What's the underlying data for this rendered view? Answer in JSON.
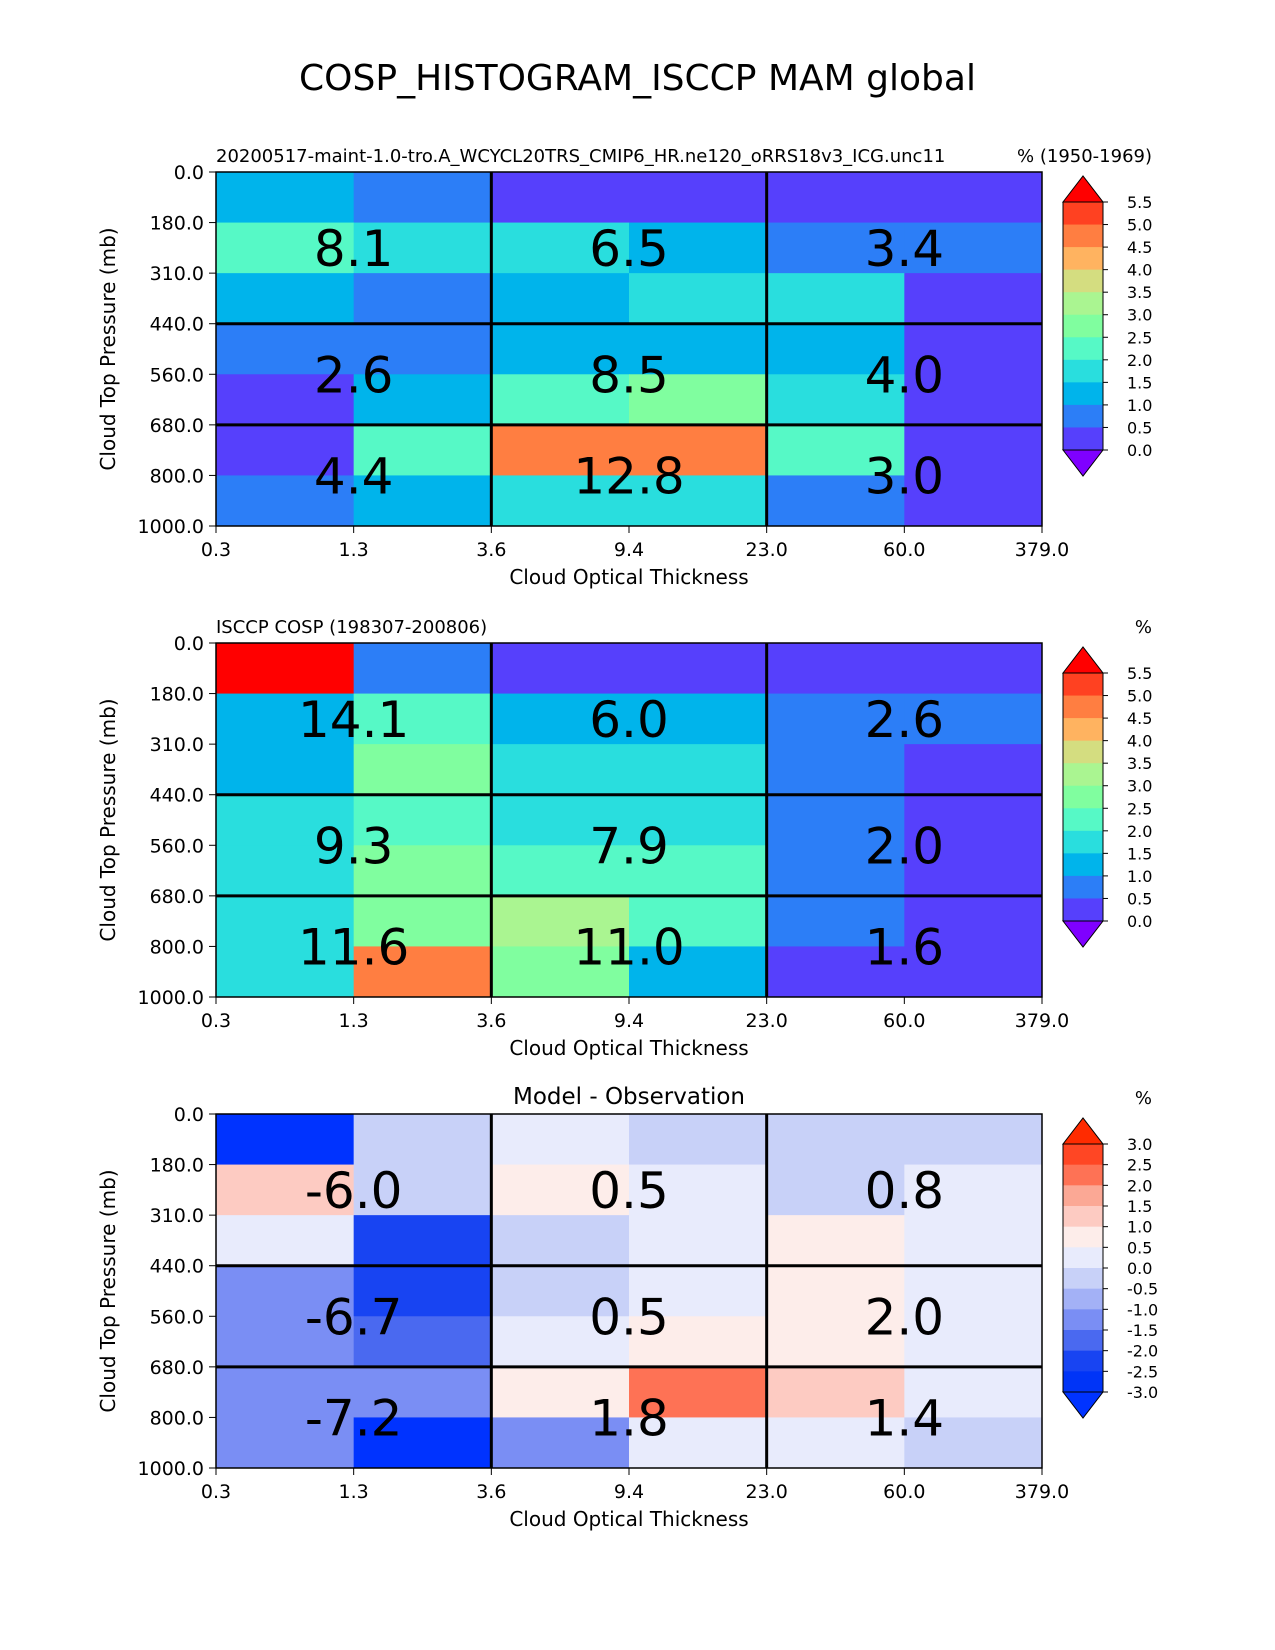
{
  "page_title": "COSP_HISTOGRAM_ISCCP MAM global",
  "chart_data": [
    {
      "type": "heatmap",
      "title_left": "20200517-maint-1.0-tro.A_WCYCL20TRS_CMIP6_HR.ne120_oRRS18v3_ICG.unc11",
      "title_center": "",
      "title_right": "% (1950-1969)",
      "xlabel": "Cloud Optical Thickness",
      "ylabel": "Cloud Top Pressure (mb)",
      "x_ticks": [
        "0.3",
        "1.3",
        "3.6",
        "9.4",
        "23.0",
        "60.0",
        "379.0"
      ],
      "y_ticks": [
        "0.0",
        "180.0",
        "310.0",
        "440.0",
        "560.0",
        "680.0",
        "800.0",
        "1000.0"
      ],
      "colorbar": {
        "labels": [
          "5.5",
          "5.0",
          "4.5",
          "4.0",
          "3.5",
          "3.0",
          "2.5",
          "2.0",
          "1.5",
          "1.0",
          "0.5",
          "0.0"
        ],
        "colors": [
          "#7f00ff",
          "#5640fc",
          "#2c7ef7",
          "#00b4eb",
          "#29dede",
          "#56f9c6",
          "#80fe9f",
          "#aaf591",
          "#d4dd80",
          "#ffb360",
          "#ff7e41",
          "#ff4121",
          "#ff0000"
        ]
      },
      "values": [
        [
          1.3,
          0.6,
          0.1,
          0.1,
          0.1,
          0.1
        ],
        [
          2.3,
          1.8,
          1.8,
          1.4,
          0.6,
          0.6
        ],
        [
          1.3,
          0.6,
          1.3,
          1.8,
          1.8,
          0.1
        ],
        [
          0.6,
          0.6,
          1.3,
          1.3,
          1.3,
          0.1
        ],
        [
          0.1,
          1.3,
          2.3,
          2.8,
          1.8,
          0.1
        ],
        [
          0.1,
          2.3,
          4.8,
          4.8,
          2.3,
          0.1
        ],
        [
          0.6,
          1.3,
          1.8,
          1.8,
          0.6,
          0.1
        ]
      ],
      "block_values": [
        [
          "8.1",
          "6.5",
          "3.4"
        ],
        [
          "2.6",
          "8.5",
          "4.0"
        ],
        [
          "4.4",
          "12.8",
          "3.0"
        ]
      ]
    },
    {
      "type": "heatmap",
      "title_left": "ISCCP COSP (198307-200806)",
      "title_center": "",
      "title_right": "%",
      "xlabel": "Cloud Optical Thickness",
      "ylabel": "Cloud Top Pressure (mb)",
      "x_ticks": [
        "0.3",
        "1.3",
        "3.6",
        "9.4",
        "23.0",
        "60.0",
        "379.0"
      ],
      "y_ticks": [
        "0.0",
        "180.0",
        "310.0",
        "440.0",
        "560.0",
        "680.0",
        "800.0",
        "1000.0"
      ],
      "colorbar": {
        "labels": [
          "5.5",
          "5.0",
          "4.5",
          "4.0",
          "3.5",
          "3.0",
          "2.5",
          "2.0",
          "1.5",
          "1.0",
          "0.5",
          "0.0"
        ],
        "colors": [
          "#7f00ff",
          "#5640fc",
          "#2c7ef7",
          "#00b4eb",
          "#29dede",
          "#56f9c6",
          "#80fe9f",
          "#aaf591",
          "#d4dd80",
          "#ffb360",
          "#ff7e41",
          "#ff4121",
          "#ff0000"
        ]
      },
      "values": [
        [
          5.8,
          0.6,
          0.1,
          0.1,
          0.1,
          0.1
        ],
        [
          1.3,
          2.3,
          1.3,
          1.3,
          0.6,
          0.6
        ],
        [
          1.3,
          2.8,
          1.8,
          1.8,
          0.6,
          0.1
        ],
        [
          1.8,
          2.3,
          1.8,
          1.8,
          0.6,
          0.1
        ],
        [
          1.8,
          2.8,
          2.3,
          2.3,
          0.6,
          0.1
        ],
        [
          1.8,
          2.8,
          3.3,
          2.3,
          0.6,
          0.1
        ],
        [
          1.8,
          4.8,
          2.8,
          1.3,
          0.1,
          0.1
        ]
      ],
      "block_values": [
        [
          "14.1",
          "6.0",
          "2.6"
        ],
        [
          "9.3",
          "7.9",
          "2.0"
        ],
        [
          "11.6",
          "11.0",
          "1.6"
        ]
      ]
    },
    {
      "type": "heatmap",
      "title_left": "",
      "title_center": "Model - Observation",
      "title_right": "%",
      "xlabel": "Cloud Optical Thickness",
      "ylabel": "Cloud Top Pressure (mb)",
      "x_ticks": [
        "0.3",
        "1.3",
        "3.6",
        "9.4",
        "23.0",
        "60.0",
        "379.0"
      ],
      "y_ticks": [
        "0.0",
        "180.0",
        "310.0",
        "440.0",
        "560.0",
        "680.0",
        "800.0",
        "1000.0"
      ],
      "colorbar": {
        "labels": [
          "3.0",
          "2.5",
          "2.0",
          "1.5",
          "1.0",
          "0.5",
          "0.0",
          "-0.5",
          "-1.0",
          "-1.5",
          "-2.0",
          "-2.5",
          "-3.0"
        ],
        "colors": [
          "#0033ff",
          "#0034f7",
          "#1844f2",
          "#4a69f0",
          "#7a8ef4",
          "#a3b1f6",
          "#c8d1f8",
          "#e8ebfc",
          "#fdedea",
          "#fdcbc2",
          "#fba895",
          "#fe7255",
          "#ff4624",
          "#ff2b00"
        ]
      },
      "values": [
        [
          -3.2,
          -0.2,
          0.2,
          -0.2,
          -0.2,
          -0.2
        ],
        [
          1.2,
          -0.2,
          0.8,
          0.2,
          -0.2,
          0.2
        ],
        [
          0.2,
          -2.2,
          -0.2,
          0.2,
          0.8,
          0.2
        ],
        [
          -1.2,
          -2.2,
          -0.2,
          0.2,
          0.8,
          0.2
        ],
        [
          -1.2,
          -1.7,
          0.2,
          0.8,
          0.8,
          0.2
        ],
        [
          -1.2,
          -1.2,
          0.8,
          2.2,
          1.2,
          0.2
        ],
        [
          -1.2,
          -3.2,
          -1.2,
          0.2,
          0.2,
          -0.2
        ]
      ],
      "block_values": [
        [
          "-6.0",
          "0.5",
          "0.8"
        ],
        [
          "-6.7",
          "0.5",
          "2.0"
        ],
        [
          "-7.2",
          "1.8",
          "1.4"
        ]
      ]
    }
  ]
}
